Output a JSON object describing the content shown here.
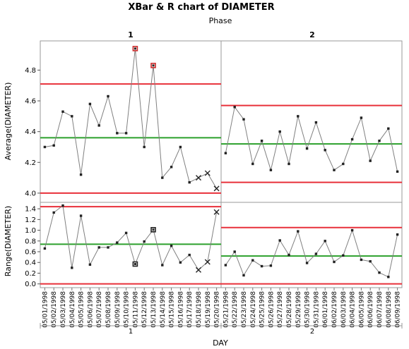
{
  "chart_data": {
    "type": "line",
    "title": "XBar & R chart of DIAMETER",
    "phase_label": "Phase",
    "phases": [
      "1",
      "2"
    ],
    "xlabel": "DAY",
    "colors": {
      "limit": "#e8303a",
      "center": "#2ca02c",
      "series": "#808080",
      "marker": "#222222",
      "highlight": "#cc2a2a"
    },
    "dates": [
      [
        "05/01/1998",
        "05/02/1998",
        "05/03/1998",
        "05/04/1998",
        "05/05/1998",
        "05/06/1998",
        "05/07/1998",
        "05/08/1998",
        "05/09/1998",
        "05/10/1998",
        "05/11/1998",
        "05/12/1998",
        "05/13/1998",
        "05/14/1998",
        "05/15/1998",
        "05/16/1998",
        "05/17/1998",
        "05/18/1998",
        "05/19/1998",
        "05/20/1998"
      ],
      [
        "05/21/1998",
        "05/22/1998",
        "05/23/1998",
        "05/24/1998",
        "05/25/1998",
        "05/26/1998",
        "05/27/1998",
        "05/28/1998",
        "05/29/1998",
        "05/30/1998",
        "05/31/1998",
        "06/01/1998",
        "06/02/1998",
        "06/03/1998",
        "06/04/1998",
        "06/05/1998",
        "06/06/1998",
        "06/07/1998",
        "06/08/1998",
        "06/09/1998"
      ]
    ],
    "xbar": {
      "ylabel": "Average(DIAMETER)",
      "ylim": [
        3.94,
        4.99
      ],
      "ticks": [
        "4.0",
        "4.2",
        "4.4",
        "4.6",
        "4.8"
      ],
      "values": [
        [
          4.3,
          4.31,
          4.53,
          4.5,
          4.12,
          4.58,
          4.44,
          4.63,
          4.39,
          4.39,
          4.94,
          4.3,
          4.83,
          4.1,
          4.17,
          4.3,
          4.07,
          4.1,
          4.13,
          4.03
        ],
        [
          4.26,
          4.56,
          4.48,
          4.19,
          4.34,
          4.15,
          4.4,
          4.19,
          4.5,
          4.29,
          4.46,
          4.28,
          4.15,
          4.19,
          4.35,
          4.49,
          4.21,
          4.34,
          4.42,
          4.14
        ]
      ],
      "ucl": [
        4.71,
        4.57
      ],
      "center": [
        4.36,
        4.32
      ],
      "lcl": [
        4.0,
        4.07
      ],
      "flagged": [
        [
          10,
          12
        ],
        []
      ],
      "excluded": [
        [
          17,
          18,
          19
        ],
        []
      ]
    },
    "range": {
      "ylabel": "Range(DIAMETER)",
      "ylim": [
        -0.07,
        1.52
      ],
      "ticks": [
        "0.0",
        "0.2",
        "0.4",
        "0.6",
        "0.8",
        "1.0",
        "1.2",
        "1.4"
      ],
      "values": [
        [
          0.66,
          1.33,
          1.46,
          0.3,
          1.27,
          0.36,
          0.68,
          0.68,
          0.77,
          0.95,
          0.37,
          0.79,
          1.01,
          0.35,
          0.71,
          0.4,
          0.54,
          0.26,
          0.41,
          1.34
        ],
        [
          0.35,
          0.6,
          0.16,
          0.44,
          0.33,
          0.34,
          0.81,
          0.54,
          0.98,
          0.39,
          0.56,
          0.8,
          0.41,
          0.53,
          1.0,
          0.45,
          0.42,
          0.21,
          0.13,
          0.92
        ]
      ],
      "ucl": [
        1.44,
        1.05
      ],
      "center": [
        0.74,
        0.52
      ],
      "lcl": [
        0.0,
        0.0
      ],
      "boxed": [
        [
          10,
          12
        ],
        []
      ],
      "excluded": [
        [
          17,
          18,
          19
        ],
        []
      ]
    }
  }
}
